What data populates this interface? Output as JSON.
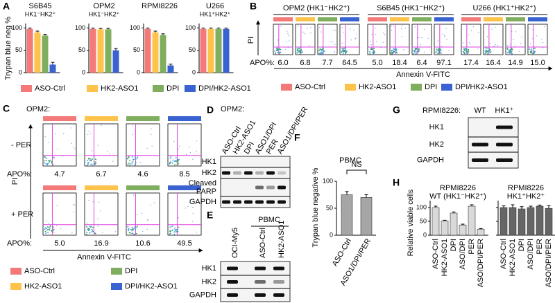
{
  "panel_labels": [
    "A",
    "B",
    "C",
    "D",
    "E",
    "F",
    "G",
    "H"
  ],
  "chart_data": [
    {
      "type": "bar",
      "title": "S6B45",
      "subtitle": "HK1⁻HK2⁺",
      "ylabel": "Trypan blue neg %",
      "categories": [
        "ASO-Ctrl",
        "HK2-ASO1",
        "DPI",
        "DPI/HK2-ASO1"
      ],
      "colors": [
        "#f47a7a",
        "#fdc34a",
        "#7fae5e",
        "#3a63d1"
      ],
      "values": [
        98,
        90,
        83,
        18
      ],
      "errors": [
        2,
        3,
        3,
        5
      ],
      "ylim": [
        0,
        110
      ],
      "yticks": [
        0,
        50,
        100
      ]
    },
    {
      "type": "bar",
      "title": "OPM2",
      "subtitle": "HK1⁻HK2⁺",
      "categories": [
        null,
        null,
        null,
        null
      ],
      "colors": [
        "#f47a7a",
        "#fdc34a",
        "#7fae5e",
        "#3a63d1"
      ],
      "values": [
        98,
        97,
        97,
        50
      ],
      "errors": [
        2,
        2,
        2,
        4
      ],
      "ylim": [
        0,
        110
      ],
      "yticks": [
        0,
        50,
        100
      ]
    },
    {
      "type": "bar",
      "title": "RPMI8226",
      "categories": [
        null,
        null,
        null,
        null
      ],
      "colors": [
        "#f47a7a",
        "#fdc34a",
        "#7fae5e",
        "#3a63d1"
      ],
      "values": [
        98,
        90,
        84,
        16
      ],
      "errors": [
        2,
        3,
        3,
        3
      ],
      "ylim": [
        0,
        110
      ],
      "yticks": [
        0,
        50,
        100
      ]
    },
    {
      "type": "bar",
      "title": "U266",
      "subtitle": "HK1⁺HK2⁺",
      "categories": [
        null,
        null,
        null,
        null
      ],
      "colors": [
        "#f47a7a",
        "#fdc34a",
        "#7fae5e",
        "#3a63d1"
      ],
      "values": [
        98,
        98,
        98,
        98
      ],
      "errors": [
        2,
        2,
        2,
        2
      ],
      "ylim": [
        0,
        110
      ],
      "yticks": [
        0,
        50,
        100
      ]
    },
    {
      "type": "bar",
      "title": "PBMC",
      "ylabel": "Trypan blue negative %",
      "categories": [
        "ASO-Ctrl",
        "ASO1/DPI/PER"
      ],
      "color": "#a6a6a6",
      "values": [
        75,
        70
      ],
      "errors": [
        6,
        5
      ],
      "ylim": [
        0,
        100
      ],
      "yticks": [
        0,
        50,
        100
      ],
      "annotation": "NS"
    },
    {
      "type": "bar",
      "title": "RPMI8226",
      "subtitle": "WT (HK1⁻HK2⁺)",
      "ylabel": "Relative viable cells",
      "categories": [
        "ASO-Ctrl",
        "HK2-ASO1",
        "DPI",
        "ASO/DPI",
        "PER",
        "ASO/DPI/PER"
      ],
      "color": "#d9d9d9",
      "values": [
        100,
        52,
        80,
        37,
        105,
        22
      ],
      "errors": [
        5,
        2,
        4,
        3,
        5,
        2
      ],
      "ylim": [
        0,
        125
      ],
      "yticks": [
        0,
        50,
        100
      ]
    },
    {
      "type": "bar",
      "title": "RPMI8226",
      "subtitle": "HK1⁺HK2⁺",
      "categories": [
        "ASO-Ctrl",
        "HK2-ASO1",
        "DPI",
        "ASO/DPI",
        "PER",
        "ASO/DPI/PER"
      ],
      "color": "#666666",
      "values": [
        100,
        100,
        95,
        100,
        105,
        97
      ],
      "errors": [
        6,
        10,
        8,
        5,
        4,
        10
      ],
      "ylim": [
        0,
        125
      ],
      "yticks": [
        0,
        50,
        100
      ]
    }
  ],
  "B": {
    "groups": [
      {
        "title": "OPM2 (HK1⁻HK2⁺)",
        "apo": [
          "6.0",
          "6.8",
          "7.7",
          "64.5"
        ]
      },
      {
        "title": "S6B45 (HK1⁻HK2⁺)",
        "apo": [
          "5.0",
          "18.4",
          "6.4",
          "97.1"
        ]
      },
      {
        "title": "U266 (HK1⁺HK2⁺)",
        "apo": [
          "17.4",
          "16.4",
          "14.9",
          "15.0"
        ]
      }
    ],
    "apo_label": "APO%:",
    "y_axis": "PI",
    "x_axis": "Annexin V-FITC",
    "legend": [
      {
        "name": "ASO-Ctrl",
        "color": "#f47a7a"
      },
      {
        "name": "HK2-ASO1",
        "color": "#fdc34a"
      },
      {
        "name": "DPI",
        "color": "#7fae5e"
      },
      {
        "name": "DPI/HK2-ASO1",
        "color": "#3a63d1"
      }
    ]
  },
  "C": {
    "cell": "OPM2:",
    "rows": [
      {
        "label": "- PER",
        "apo": [
          "4.7",
          "6.7",
          "4.6",
          "8.5"
        ]
      },
      {
        "label": "+ PER",
        "apo": [
          "5.0",
          "16.9",
          "10.6",
          "49.5"
        ]
      }
    ],
    "apo_label": "APO%:",
    "y_axis": "PI",
    "x_axis": "Annexin V-FITC",
    "legend": [
      {
        "name": "ASO-Ctrl",
        "color": "#f47a7a"
      },
      {
        "name": "DPI",
        "color": "#7fae5e"
      },
      {
        "name": "HK2-ASO1",
        "color": "#fdc34a"
      },
      {
        "name": "DPI/HK2-ASO1",
        "color": "#3a63d1"
      }
    ]
  },
  "D": {
    "cell": "OPM2:",
    "lanes": [
      "ASO-Ctrl",
      "HK2-ASO1",
      "DPI",
      "ASO1/DPI",
      "PER",
      "ASO1/DPI/PER"
    ],
    "rows": [
      [
        "HK1"
      ],
      [
        "HK2"
      ],
      [
        "Cleaved",
        "PARP"
      ],
      [
        "GAPDH"
      ]
    ]
  },
  "E": {
    "group": "PBMC",
    "lanes": [
      "OCI-My5",
      "ASO-Ctrl",
      "HK2-ASO1"
    ],
    "rows": [
      "HK1",
      "HK2",
      "GAPDH"
    ]
  },
  "G": {
    "cell": "RPMI8226:",
    "lanes": [
      "WT",
      "HK1⁺"
    ],
    "rows": [
      "HK1",
      "HK2",
      "GAPDH"
    ]
  }
}
